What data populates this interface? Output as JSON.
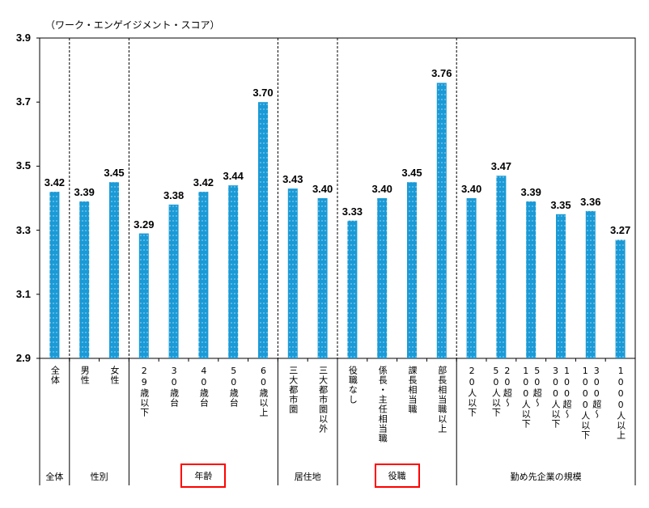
{
  "chart_data": {
    "type": "bar",
    "title": "（ワーク・エンゲイジメント・スコア）",
    "ylim": [
      2.9,
      3.9
    ],
    "yticks": [
      "2.9",
      "3.1",
      "3.3",
      "3.5",
      "3.7",
      "3.9"
    ],
    "bar_color": "#1a9ad6",
    "categories": [
      "全体",
      "男性",
      "女性",
      "29歳以下",
      "30歳台",
      "40歳台",
      "50歳台",
      "60歳以上",
      "三大都市圏",
      "三大都市圏以外",
      "役職なし",
      "係長・主任相当職",
      "課長相当職",
      "部長相当職以上",
      "20人以下",
      "20超～\n50人以下",
      "50超～\n100人以下",
      "100超～\n300人以下",
      "300超～\n1000人以下",
      "1000人以上"
    ],
    "values": [
      3.42,
      3.39,
      3.45,
      3.29,
      3.38,
      3.42,
      3.44,
      3.7,
      3.43,
      3.4,
      3.33,
      3.4,
      3.45,
      3.76,
      3.4,
      3.47,
      3.39,
      3.35,
      3.36,
      3.27
    ],
    "value_labels": [
      "3.42",
      "3.39",
      "3.45",
      "3.29",
      "3.38",
      "3.42",
      "3.44",
      "3.70",
      "3.43",
      "3.40",
      "3.33",
      "3.40",
      "3.45",
      "3.76",
      "3.40",
      "3.47",
      "3.39",
      "3.35",
      "3.36",
      "3.27"
    ],
    "groups": [
      {
        "label": "全体",
        "count": 1,
        "highlight": false
      },
      {
        "label": "性別",
        "count": 2,
        "highlight": false
      },
      {
        "label": "年齢",
        "count": 5,
        "highlight": true
      },
      {
        "label": "居住地",
        "count": 2,
        "highlight": false
      },
      {
        "label": "役職",
        "count": 4,
        "highlight": true
      },
      {
        "label": "勤め先企業の規模",
        "count": 6,
        "highlight": false
      }
    ],
    "grid": false,
    "legend": "none"
  }
}
